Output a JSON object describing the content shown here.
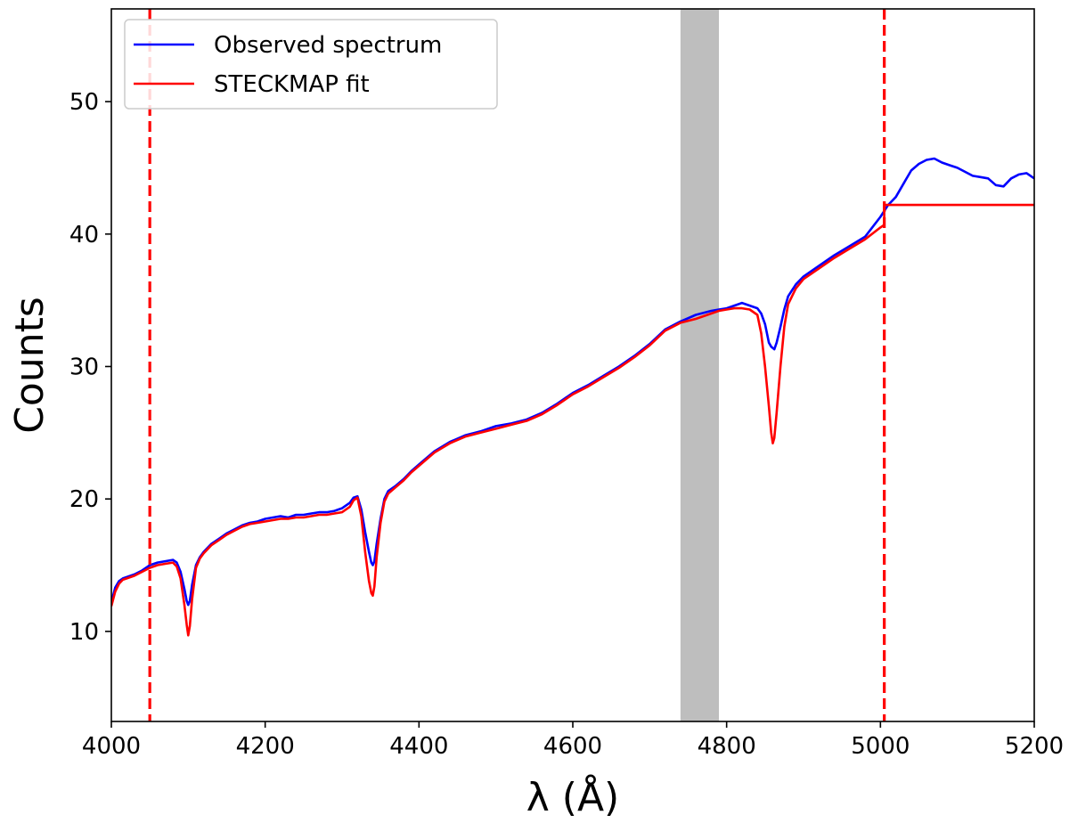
{
  "chart_data": {
    "type": "line",
    "title": "",
    "xlabel": "λ (Å)",
    "ylabel": "Counts",
    "xlim": [
      4000,
      5200
    ],
    "ylim": [
      3.2,
      57
    ],
    "xticks": [
      4000,
      4200,
      4400,
      4600,
      4800,
      5000,
      5200
    ],
    "yticks": [
      10,
      20,
      30,
      40,
      50
    ],
    "grid": false,
    "legend_position": "top-left",
    "colors": {
      "observed": "#0000ff",
      "fit": "#ff0000",
      "masked_band": "#bebebe",
      "window_lines": "#ff0000"
    },
    "shaded_region": {
      "from": 4740,
      "to": 4790
    },
    "vertical_lines": [
      4050,
      5005
    ],
    "series": [
      {
        "name": "Observed spectrum",
        "color": "#0000ff",
        "x": [
          4000,
          4005,
          4010,
          4015,
          4020,
          4030,
          4040,
          4050,
          4060,
          4070,
          4080,
          4085,
          4090,
          4095,
          4098,
          4100,
          4102,
          4105,
          4110,
          4115,
          4120,
          4130,
          4140,
          4150,
          4160,
          4170,
          4180,
          4190,
          4200,
          4210,
          4220,
          4230,
          4240,
          4250,
          4260,
          4270,
          4280,
          4290,
          4300,
          4310,
          4315,
          4320,
          4325,
          4330,
          4335,
          4338,
          4340,
          4342,
          4345,
          4350,
          4355,
          4360,
          4370,
          4380,
          4390,
          4400,
          4420,
          4440,
          4460,
          4480,
          4500,
          4520,
          4540,
          4560,
          4580,
          4600,
          4620,
          4640,
          4660,
          4680,
          4700,
          4720,
          4740,
          4760,
          4780,
          4790,
          4800,
          4810,
          4820,
          4830,
          4840,
          4845,
          4850,
          4855,
          4858,
          4860,
          4862,
          4865,
          4870,
          4875,
          4880,
          4890,
          4900,
          4920,
          4940,
          4960,
          4980,
          5000,
          5010,
          5020,
          5030,
          5040,
          5050,
          5060,
          5070,
          5080,
          5090,
          5100,
          5110,
          5120,
          5130,
          5140,
          5150,
          5160,
          5170,
          5180,
          5190,
          5200
        ],
        "y": [
          12.2,
          13.3,
          13.8,
          14.0,
          14.1,
          14.3,
          14.6,
          15.0,
          15.2,
          15.3,
          15.4,
          15.2,
          14.5,
          13.2,
          12.3,
          12.0,
          12.3,
          13.5,
          15.0,
          15.6,
          16.0,
          16.6,
          17.0,
          17.4,
          17.7,
          18.0,
          18.2,
          18.3,
          18.5,
          18.6,
          18.7,
          18.6,
          18.8,
          18.8,
          18.9,
          19.0,
          19.0,
          19.1,
          19.3,
          19.7,
          20.1,
          20.2,
          19.2,
          17.5,
          16.0,
          15.2,
          15.0,
          15.3,
          16.6,
          18.5,
          20.0,
          20.6,
          21.0,
          21.5,
          22.1,
          22.6,
          23.6,
          24.3,
          24.8,
          25.1,
          25.5,
          25.7,
          26.0,
          26.5,
          27.2,
          28.0,
          28.6,
          29.3,
          30.0,
          30.8,
          31.7,
          32.8,
          33.4,
          33.9,
          34.2,
          34.3,
          34.4,
          34.6,
          34.8,
          34.6,
          34.4,
          34.0,
          33.2,
          31.8,
          31.5,
          31.4,
          31.3,
          31.8,
          33.0,
          34.3,
          35.3,
          36.2,
          36.8,
          37.6,
          38.4,
          39.1,
          39.8,
          41.3,
          42.2,
          42.8,
          43.8,
          44.8,
          45.3,
          45.6,
          45.7,
          45.4,
          45.2,
          45.0,
          44.7,
          44.4,
          44.3,
          44.2,
          43.7,
          43.6,
          44.2,
          44.5,
          44.6,
          44.2
        ]
      },
      {
        "name": "STECKMAP fit",
        "color": "#ff0000",
        "x": [
          4000,
          4005,
          4010,
          4015,
          4020,
          4030,
          4040,
          4050,
          4060,
          4070,
          4080,
          4085,
          4090,
          4095,
          4098,
          4100,
          4102,
          4105,
          4110,
          4115,
          4120,
          4130,
          4140,
          4150,
          4160,
          4170,
          4180,
          4190,
          4200,
          4210,
          4220,
          4230,
          4240,
          4250,
          4260,
          4270,
          4280,
          4290,
          4300,
          4310,
          4315,
          4320,
          4325,
          4330,
          4335,
          4338,
          4340,
          4342,
          4345,
          4350,
          4355,
          4360,
          4370,
          4380,
          4390,
          4400,
          4420,
          4440,
          4460,
          4480,
          4500,
          4520,
          4540,
          4560,
          4580,
          4600,
          4620,
          4640,
          4660,
          4680,
          4700,
          4720,
          4740,
          4760,
          4780,
          4790,
          4800,
          4810,
          4820,
          4830,
          4840,
          4845,
          4850,
          4855,
          4858,
          4860,
          4862,
          4865,
          4870,
          4875,
          4880,
          4890,
          4900,
          4920,
          4940,
          4960,
          4980,
          5000,
          5005,
          5005,
          5200
        ],
        "y": [
          11.9,
          13.0,
          13.6,
          13.9,
          14.0,
          14.2,
          14.5,
          14.8,
          15.0,
          15.1,
          15.2,
          14.9,
          14.0,
          12.0,
          10.5,
          9.7,
          10.4,
          12.4,
          14.8,
          15.5,
          15.9,
          16.5,
          16.9,
          17.3,
          17.6,
          17.9,
          18.1,
          18.2,
          18.3,
          18.4,
          18.5,
          18.5,
          18.6,
          18.6,
          18.7,
          18.8,
          18.8,
          18.9,
          19.0,
          19.4,
          19.9,
          20.1,
          18.7,
          16.0,
          13.8,
          12.9,
          12.7,
          13.4,
          15.6,
          18.2,
          19.8,
          20.4,
          20.9,
          21.4,
          22.0,
          22.5,
          23.5,
          24.2,
          24.7,
          25.0,
          25.3,
          25.6,
          25.9,
          26.4,
          27.1,
          27.9,
          28.5,
          29.2,
          29.9,
          30.7,
          31.6,
          32.7,
          33.3,
          33.6,
          34.0,
          34.2,
          34.3,
          34.4,
          34.4,
          34.3,
          33.9,
          32.5,
          30.0,
          27.0,
          25.0,
          24.2,
          24.6,
          26.5,
          30.0,
          33.0,
          34.7,
          35.9,
          36.6,
          37.4,
          38.2,
          38.9,
          39.6,
          40.5,
          40.7,
          42.2,
          42.2
        ]
      }
    ]
  }
}
